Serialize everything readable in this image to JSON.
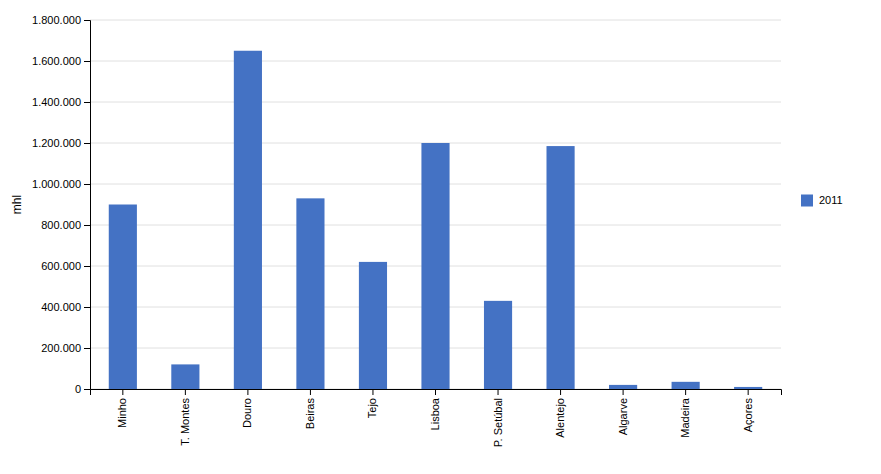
{
  "chart_data": {
    "type": "bar",
    "ylabel": "mhl",
    "categories": [
      "Minho",
      "T. Montes",
      "Douro",
      "Beiras",
      "Tejo",
      "Lisboa",
      "P. Setúbal",
      "Alentejo",
      "Algarve",
      "Madeira",
      "Açores"
    ],
    "series": [
      {
        "name": "2011",
        "color": "#4472C4",
        "values": [
          900000,
          120000,
          1650000,
          930000,
          620000,
          1200000,
          430000,
          1185000,
          20000,
          35000,
          10000
        ]
      }
    ],
    "ylim": [
      0,
      1800000
    ],
    "yticks": [
      0,
      {
        "value": 200000,
        "label": "200.000"
      },
      {
        "value": 400000,
        "label": "400.000"
      },
      {
        "value": 600000,
        "label": "600.000"
      },
      {
        "value": 800000,
        "label": "800.000"
      },
      {
        "value": 1000000,
        "label": "1.000.000"
      },
      {
        "value": 1200000,
        "label": "1.200.000"
      },
      {
        "value": 1400000,
        "label": "1.400.000"
      },
      {
        "value": 1600000,
        "label": "1.600.000"
      },
      {
        "value": 1800000,
        "label": "1.800.000"
      }
    ],
    "grid": true,
    "legend": "right"
  }
}
